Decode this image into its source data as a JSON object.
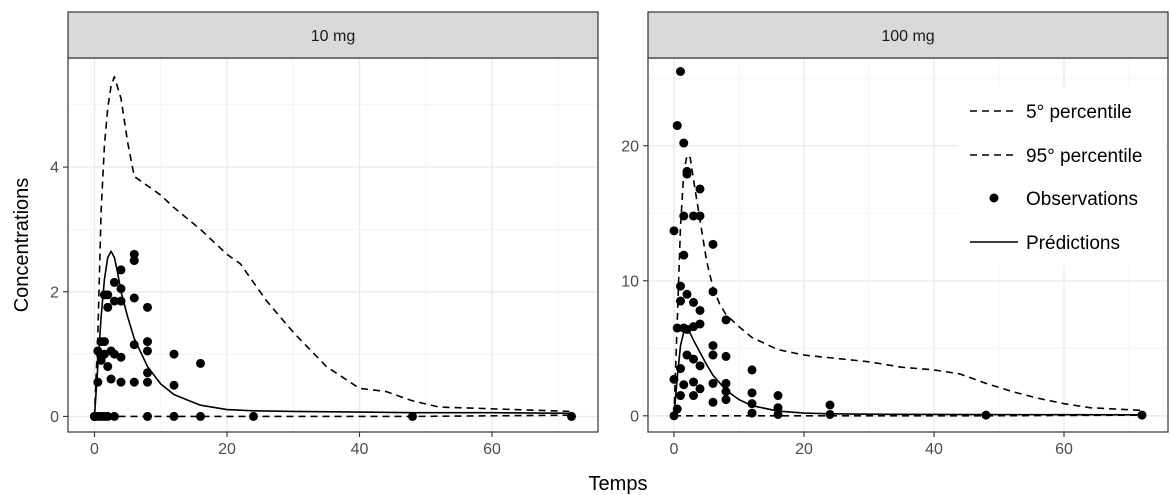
{
  "chart_data": {
    "type": "line",
    "xlabel": "Temps",
    "ylabel": "Concentrations",
    "legend_position": "right",
    "legend": [
      {
        "label": "5° percentile",
        "style": "dashed"
      },
      {
        "label": "95° percentile",
        "style": "dashed"
      },
      {
        "label": "Observations",
        "style": "point"
      },
      {
        "label": "Prédictions",
        "style": "solid"
      }
    ],
    "colors": {
      "series": "#000000",
      "strip_bg": "#d9d9d9",
      "border": "#333333",
      "grid": "#ebebeb"
    },
    "panels": [
      {
        "title": "10 mg",
        "xlim": [
          -4,
          76
        ],
        "ylim": [
          -0.25,
          5.75
        ],
        "xticks": [
          0,
          20,
          40,
          60
        ],
        "yticks": [
          0,
          2,
          4
        ],
        "series": [
          {
            "name": "5° percentile",
            "style": "dashed",
            "x": [
              0,
              0.5,
              1,
              1.5,
              2,
              3,
              4,
              6,
              8,
              12,
              16,
              24,
              48,
              72
            ],
            "y": [
              0,
              0,
              0,
              0,
              0,
              0,
              0,
              0,
              0,
              0,
              0,
              0,
              0,
              0.02
            ]
          },
          {
            "name": "95° percentile",
            "style": "dashed",
            "x": [
              0,
              0.5,
              1,
              1.5,
              2,
              2.5,
              3,
              4,
              5,
              6,
              8,
              10,
              12,
              16,
              20,
              22,
              26,
              30,
              35,
              40,
              44,
              48,
              52,
              72
            ],
            "y": [
              0,
              1.3,
              3.3,
              4.35,
              4.95,
              5.3,
              5.45,
              5.1,
              4.4,
              3.85,
              3.7,
              3.55,
              3.35,
              3.0,
              2.6,
              2.45,
              1.85,
              1.35,
              0.8,
              0.45,
              0.4,
              0.25,
              0.15,
              0.08
            ]
          },
          {
            "name": "Prédictions",
            "style": "solid",
            "x": [
              0,
              0.5,
              1,
              1.5,
              2,
              2.5,
              3,
              3.5,
              4,
              5,
              6,
              8,
              10,
              12,
              16,
              20,
              24,
              30,
              40,
              48,
              60,
              72
            ],
            "y": [
              0,
              0.8,
              1.6,
              2.2,
              2.55,
              2.65,
              2.55,
              2.3,
              2.0,
              1.6,
              1.25,
              0.8,
              0.52,
              0.35,
              0.18,
              0.11,
              0.09,
              0.08,
              0.07,
              0.06,
              0.06,
              0.05
            ]
          },
          {
            "name": "Observations",
            "style": "point",
            "x": [
              0,
              0,
              0,
              0,
              0.5,
              0.5,
              0.5,
              1,
              1,
              1,
              1,
              1.5,
              1.5,
              1.5,
              1.5,
              2,
              2,
              2,
              2,
              2.5,
              2.5,
              3,
              3,
              3,
              3,
              4,
              4,
              4,
              4,
              4,
              6,
              6,
              6,
              6,
              6,
              8,
              8,
              8,
              8,
              8,
              8,
              12,
              12,
              12,
              16,
              16,
              24,
              48,
              72
            ],
            "y": [
              0,
              0,
              0,
              0,
              0,
              0.55,
              1.05,
              0.9,
              1.2,
              0.95,
              0,
              1.2,
              1.0,
              0,
              1.95,
              1.75,
              0.8,
              0,
              1.95,
              0.6,
              1.05,
              1.85,
              2.15,
              1.0,
              0,
              2.05,
              2.35,
              1.85,
              0.95,
              0.55,
              2.6,
              2.5,
              1.9,
              1.15,
              0.55,
              1.75,
              1.2,
              1.05,
              0.7,
              0.55,
              0,
              1.0,
              0.5,
              0,
              0.85,
              0,
              0,
              0,
              0
            ]
          }
        ]
      },
      {
        "title": "100 mg",
        "xlim": [
          -4,
          76
        ],
        "ylim": [
          -1.2,
          26.5
        ],
        "xticks": [
          0,
          20,
          40,
          60
        ],
        "yticks": [
          0,
          10,
          20
        ],
        "series": [
          {
            "name": "5° percentile",
            "style": "dashed",
            "x": [
              0,
              0.5,
              1,
              1.5,
              2,
              3,
              4,
              6,
              8,
              12,
              16,
              24,
              48,
              72
            ],
            "y": [
              0,
              0,
              0,
              0,
              0,
              0,
              0,
              0,
              0,
              0,
              0,
              0,
              0,
              0.05
            ]
          },
          {
            "name": "95° percentile",
            "style": "dashed",
            "x": [
              0,
              0.5,
              1,
              1.5,
              2,
              2.5,
              3,
              4,
              5,
              6,
              7,
              8,
              10,
              12,
              16,
              20,
              24,
              30,
              35,
              40,
              44,
              48,
              52,
              56,
              60,
              64,
              68,
              72
            ],
            "y": [
              0,
              7,
              14,
              18,
              19.3,
              19.1,
              17.5,
              14.5,
              11.5,
              9.5,
              8.3,
              7.5,
              6.6,
              5.8,
              4.9,
              4.5,
              4.3,
              4.0,
              3.6,
              3.4,
              3.1,
              2.4,
              1.8,
              1.3,
              0.9,
              0.6,
              0.5,
              0.4
            ]
          },
          {
            "name": "Prédictions",
            "style": "solid",
            "x": [
              0,
              0.5,
              1,
              1.5,
              2,
              2.5,
              3,
              4,
              5,
              6,
              8,
              10,
              12,
              16,
              20,
              24,
              30,
              40,
              48,
              60,
              72
            ],
            "y": [
              0,
              2.8,
              5.2,
              6.2,
              6.5,
              6.1,
              5.6,
              4.7,
              3.8,
              3.0,
              1.9,
              1.2,
              0.75,
              0.35,
              0.2,
              0.15,
              0.12,
              0.1,
              0.09,
              0.08,
              0.07
            ]
          },
          {
            "name": "Observations",
            "style": "point",
            "x": [
              0,
              0,
              0,
              0.5,
              0.5,
              0.5,
              1,
              1,
              1,
              1,
              1,
              1.5,
              1.5,
              1.5,
              1.5,
              1.5,
              2,
              2,
              2,
              2,
              2,
              3,
              3,
              3,
              3,
              3,
              3,
              4,
              4,
              4,
              4,
              4,
              4,
              6,
              6,
              6,
              6,
              6,
              6,
              8,
              8,
              8,
              8,
              8,
              12,
              12,
              12,
              12,
              16,
              16,
              16,
              24,
              24,
              48,
              72
            ],
            "y": [
              13.7,
              2.7,
              0,
              21.5,
              6.5,
              0.5,
              25.5,
              9.6,
              8.5,
              3.5,
              1.5,
              20.2,
              14.8,
              11.9,
              6.5,
              2.3,
              18.1,
              17.9,
              9.0,
              6.4,
              4.5,
              14.8,
              8.4,
              6.6,
              4.2,
              2.5,
              1.5,
              16.8,
              14.8,
              7.8,
              6.8,
              3.7,
              2.0,
              12.7,
              9.2,
              5.2,
              4.5,
              2.4,
              1.0,
              7.1,
              4.4,
              2.4,
              1.8,
              1.2,
              3.4,
              1.7,
              0.9,
              0.2,
              1.5,
              0.6,
              0.1,
              0.8,
              0.1,
              0.05,
              0.05
            ]
          }
        ]
      }
    ]
  }
}
